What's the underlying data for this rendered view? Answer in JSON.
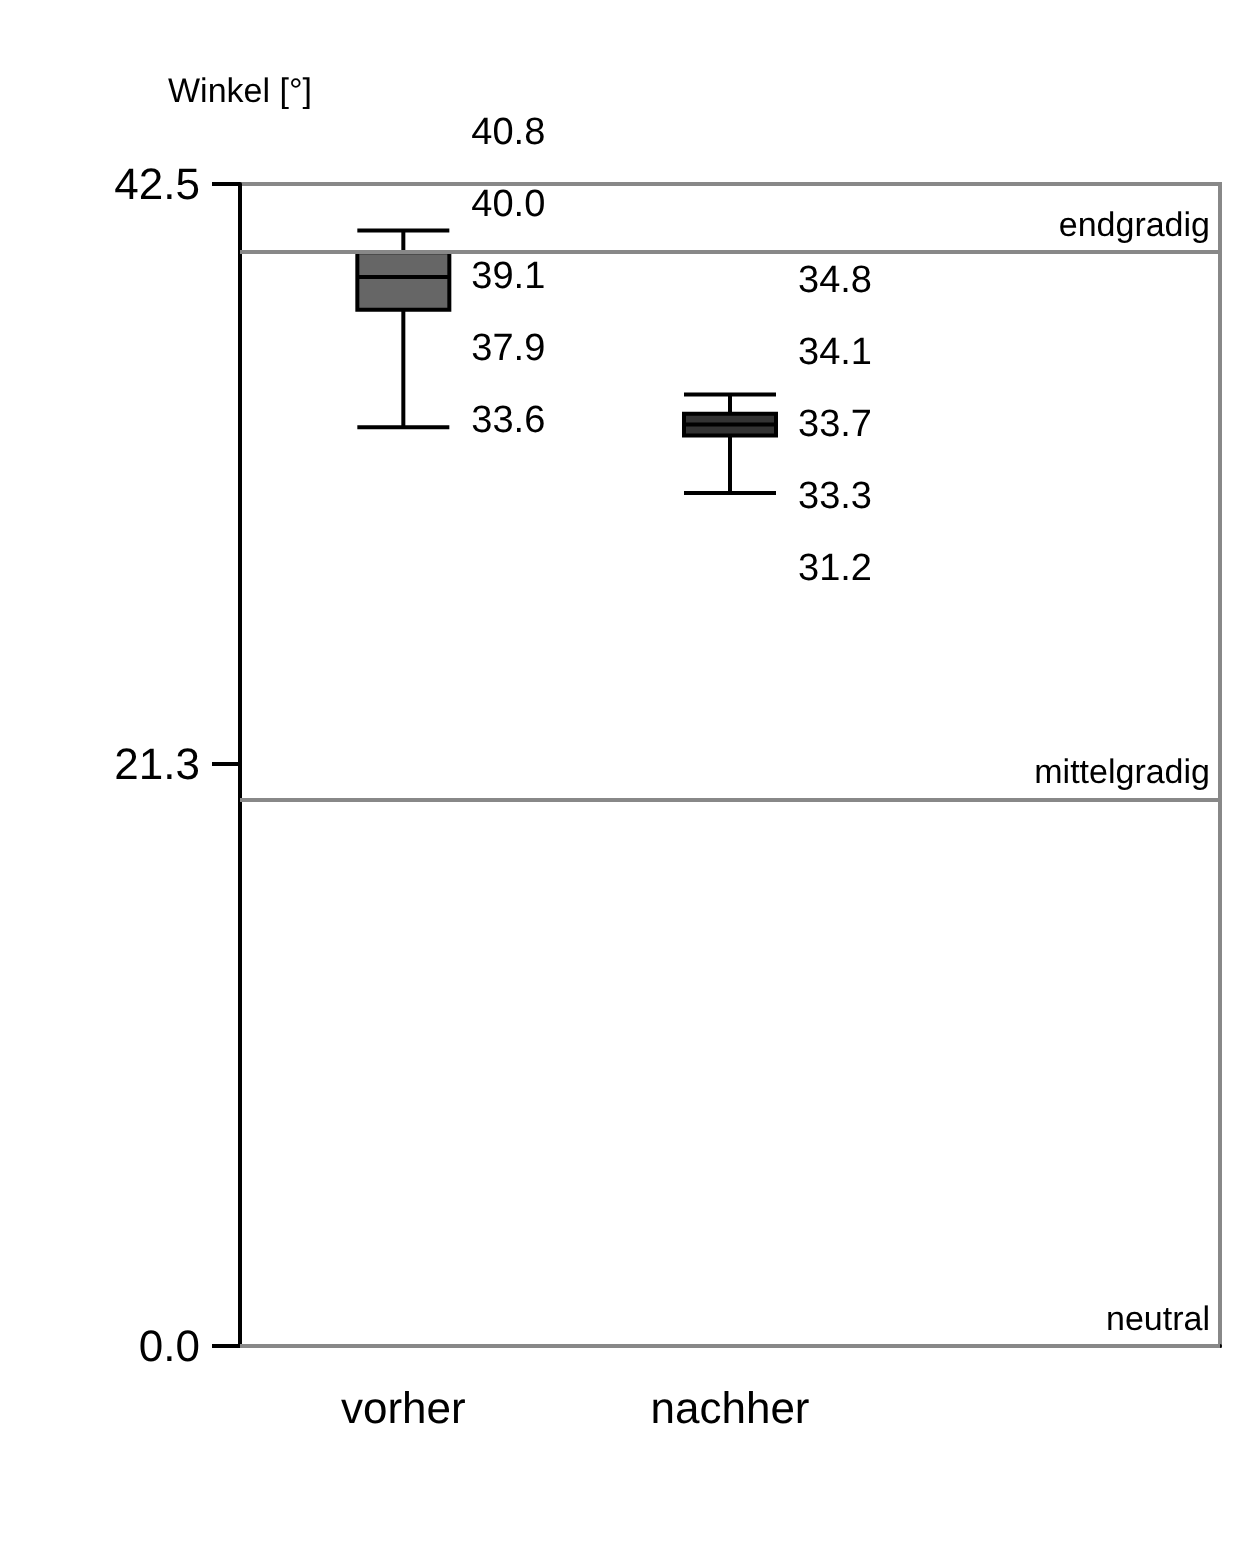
{
  "chart_data": {
    "type": "box",
    "ylabel": "Winkel [°]",
    "categories": [
      "vorher",
      "nachher"
    ],
    "boxes": [
      {
        "low": 33.6,
        "q1": 37.9,
        "median": 39.1,
        "q3": 40.0,
        "high": 40.8
      },
      {
        "low": 31.2,
        "q1": 33.3,
        "median": 33.7,
        "q3": 34.1,
        "high": 34.8
      }
    ],
    "colors": [
      "#666666",
      "#333333"
    ],
    "ylim": [
      0,
      42.5
    ],
    "yticks": [
      {
        "value": 0,
        "label": "0.0"
      },
      21.3,
      42.5
    ],
    "ref_lines": [
      {
        "axis": "y",
        "value": 40,
        "label": "endgradig",
        "color": "#888888"
      },
      {
        "axis": "y",
        "value": 20,
        "label": "mittelgradig",
        "color": "#888888"
      },
      {
        "axis": "y",
        "value": 0,
        "label": "neutral",
        "color": "#888888"
      }
    ],
    "annotations": [
      "40.8",
      "40.0",
      "39.1",
      "37.9",
      "33.6",
      "34.8",
      "34.1",
      "33.7",
      "33.3",
      "31.2"
    ],
    "grid": false
  }
}
